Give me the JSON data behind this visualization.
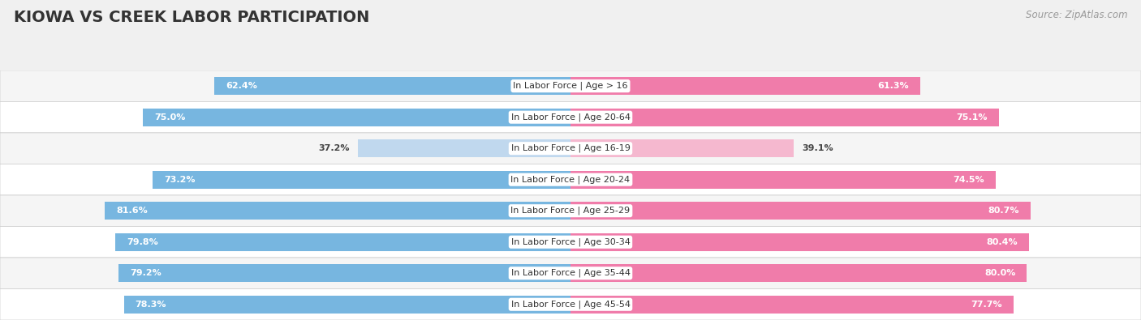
{
  "title": "KIOWA VS CREEK LABOR PARTICIPATION",
  "source": "Source: ZipAtlas.com",
  "categories": [
    "In Labor Force | Age > 16",
    "In Labor Force | Age 20-64",
    "In Labor Force | Age 16-19",
    "In Labor Force | Age 20-24",
    "In Labor Force | Age 25-29",
    "In Labor Force | Age 30-34",
    "In Labor Force | Age 35-44",
    "In Labor Force | Age 45-54"
  ],
  "kiowa_values": [
    62.4,
    75.0,
    37.2,
    73.2,
    81.6,
    79.8,
    79.2,
    78.3
  ],
  "creek_values": [
    61.3,
    75.1,
    39.1,
    74.5,
    80.7,
    80.4,
    80.0,
    77.7
  ],
  "kiowa_color": "#77b6e0",
  "kiowa_color_light": "#c0d8ee",
  "creek_color": "#f07caa",
  "creek_color_light": "#f5b8cf",
  "row_color_odd": "#f5f5f5",
  "row_color_even": "#ffffff",
  "bg_color": "#f0f0f0",
  "title_fontsize": 14,
  "source_fontsize": 8.5,
  "label_fontsize": 8,
  "value_fontsize": 8,
  "legend_fontsize": 9,
  "axis_max": 100.0,
  "bar_height": 0.58
}
